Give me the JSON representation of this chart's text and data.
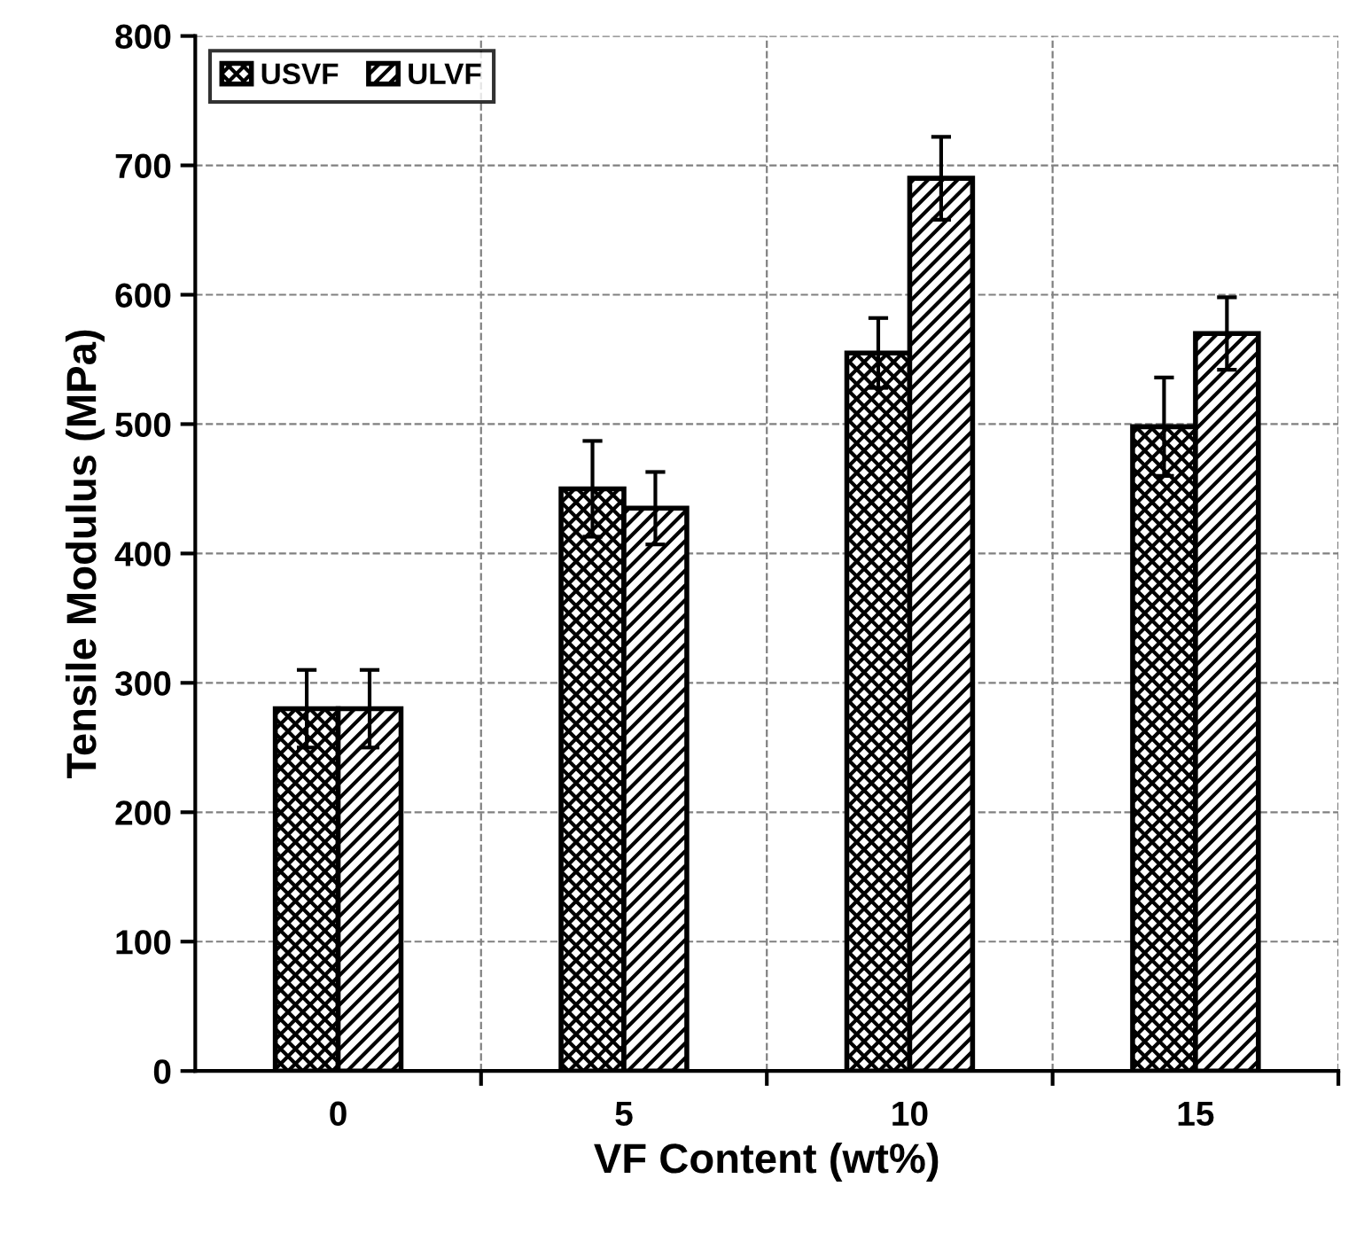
{
  "chart_data": {
    "type": "bar",
    "xlabel": "VF Content (wt%)",
    "ylabel": "Tensile Modulus (MPa)",
    "categories": [
      "0",
      "5",
      "10",
      "15"
    ],
    "series": [
      {
        "name": "USVF",
        "color": "#000000",
        "values": [
          280,
          450,
          555,
          498
        ],
        "errors": [
          30,
          37,
          27,
          38
        ]
      },
      {
        "name": "ULVF",
        "color": "#000000",
        "values": [
          280,
          435,
          690,
          570
        ],
        "errors": [
          30,
          28,
          32,
          28
        ]
      }
    ],
    "ylim": [
      0,
      800
    ],
    "yticks": [
      0,
      100,
      200,
      300,
      400,
      500,
      600,
      700,
      800
    ],
    "grid": true,
    "legend": "top left"
  }
}
